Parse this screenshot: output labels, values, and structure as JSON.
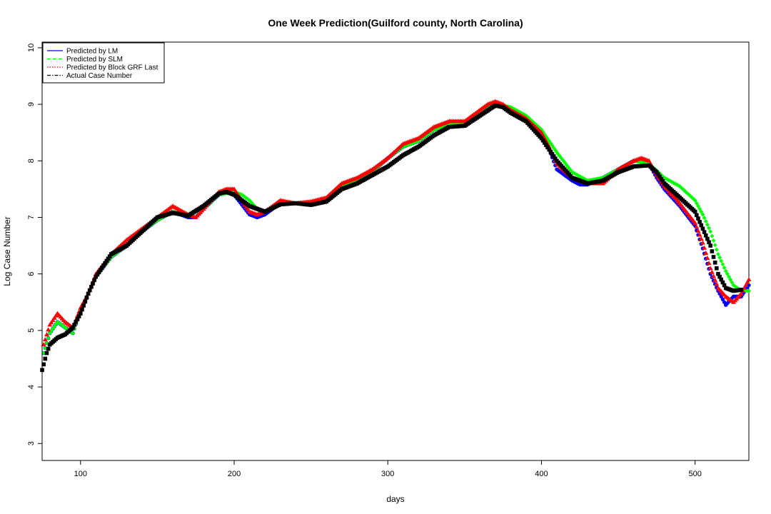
{
  "chart_data": {
    "type": "scatter",
    "title": "One Week Prediction(Guilford county, North Carolina)",
    "xlabel": "days",
    "ylabel": "Log Case Number",
    "xlim": [
      75,
      535
    ],
    "ylim": [
      2.7,
      10.1
    ],
    "xticks": [
      100,
      200,
      300,
      400,
      500
    ],
    "yticks": [
      3,
      4,
      5,
      6,
      7,
      8,
      9,
      10
    ],
    "grid": false,
    "legend_position": "top-left",
    "series": [
      {
        "name": "Predicted by LM",
        "color": "#0000ff",
        "marker": "circle",
        "line_style": "solid",
        "x": [
          76,
          80,
          85,
          90,
          95,
          100,
          105,
          110,
          120,
          130,
          140,
          150,
          160,
          170,
          175,
          180,
          190,
          195,
          200,
          210,
          215,
          220,
          230,
          240,
          250,
          260,
          270,
          280,
          290,
          300,
          310,
          320,
          330,
          340,
          350,
          360,
          365,
          370,
          375,
          380,
          390,
          400,
          405,
          410,
          415,
          420,
          425,
          430,
          440,
          450,
          460,
          465,
          470,
          475,
          480,
          490,
          500,
          505,
          510,
          515,
          520,
          525,
          530,
          535
        ],
        "y": [
          4.6,
          4.95,
          5.15,
          5.05,
          4.95,
          5.35,
          5.65,
          5.95,
          6.3,
          6.5,
          6.75,
          6.95,
          7.1,
          7.0,
          7.0,
          7.15,
          7.4,
          7.45,
          7.4,
          7.05,
          7.0,
          7.05,
          7.25,
          7.25,
          7.22,
          7.3,
          7.55,
          7.65,
          7.8,
          8.05,
          8.25,
          8.35,
          8.55,
          8.65,
          8.65,
          8.85,
          8.95,
          9.0,
          8.95,
          8.85,
          8.7,
          8.45,
          8.2,
          7.85,
          7.75,
          7.65,
          7.58,
          7.58,
          7.7,
          7.85,
          8.0,
          8.0,
          7.95,
          7.7,
          7.5,
          7.2,
          6.85,
          6.45,
          6.0,
          5.7,
          5.45,
          5.6,
          5.6,
          5.8
        ]
      },
      {
        "name": "Predicted by SLM",
        "color": "#00ff00",
        "marker": "diamond",
        "line_style": "dashed",
        "x": [
          76,
          80,
          85,
          90,
          95,
          100,
          105,
          110,
          120,
          130,
          140,
          150,
          160,
          170,
          180,
          190,
          200,
          205,
          210,
          215,
          220,
          230,
          240,
          250,
          260,
          270,
          280,
          290,
          300,
          310,
          320,
          330,
          340,
          350,
          360,
          370,
          380,
          390,
          400,
          410,
          420,
          430,
          440,
          450,
          460,
          470,
          480,
          490,
          500,
          505,
          510,
          515,
          520,
          525,
          530,
          535
        ],
        "y": [
          4.6,
          4.95,
          5.15,
          5.05,
          4.95,
          5.35,
          5.65,
          5.95,
          6.3,
          6.5,
          6.75,
          6.95,
          7.1,
          7.05,
          7.15,
          7.4,
          7.45,
          7.4,
          7.3,
          7.15,
          7.1,
          7.25,
          7.25,
          7.22,
          7.3,
          7.55,
          7.65,
          7.8,
          8.05,
          8.25,
          8.35,
          8.55,
          8.65,
          8.65,
          8.85,
          9.0,
          8.95,
          8.8,
          8.55,
          8.15,
          7.8,
          7.65,
          7.7,
          7.85,
          8.0,
          7.95,
          7.7,
          7.55,
          7.3,
          7.05,
          6.75,
          6.35,
          6.05,
          5.8,
          5.7,
          5.7
        ]
      },
      {
        "name": "Predicted by Block GRF Last",
        "color": "#ff0000",
        "marker": "triangle",
        "line_style": "dotted",
        "x": [
          76,
          80,
          85,
          90,
          95,
          100,
          105,
          110,
          120,
          130,
          140,
          150,
          160,
          170,
          175,
          180,
          190,
          195,
          200,
          210,
          215,
          220,
          230,
          240,
          250,
          260,
          270,
          280,
          290,
          300,
          310,
          320,
          330,
          340,
          350,
          360,
          365,
          370,
          375,
          380,
          390,
          400,
          405,
          410,
          420,
          430,
          440,
          450,
          460,
          465,
          470,
          475,
          480,
          490,
          500,
          505,
          510,
          515,
          520,
          525,
          530,
          535
        ],
        "y": [
          4.75,
          5.1,
          5.3,
          5.15,
          5.05,
          5.4,
          5.65,
          6.0,
          6.35,
          6.6,
          6.8,
          7.0,
          7.2,
          7.05,
          7.0,
          7.15,
          7.45,
          7.5,
          7.5,
          7.1,
          7.05,
          7.1,
          7.3,
          7.25,
          7.28,
          7.35,
          7.6,
          7.7,
          7.85,
          8.05,
          8.3,
          8.4,
          8.6,
          8.7,
          8.7,
          8.9,
          9.0,
          9.05,
          9.0,
          8.9,
          8.75,
          8.5,
          8.25,
          7.95,
          7.7,
          7.6,
          7.6,
          7.85,
          8.0,
          8.05,
          8.0,
          7.75,
          7.55,
          7.25,
          6.9,
          6.55,
          6.1,
          5.75,
          5.6,
          5.5,
          5.65,
          5.9
        ]
      },
      {
        "name": "Actual Case Number",
        "color": "#000000",
        "marker": "square",
        "line_style": "dashdot",
        "x": [
          75,
          78,
          80,
          85,
          90,
          95,
          100,
          105,
          110,
          120,
          130,
          140,
          150,
          160,
          170,
          180,
          190,
          195,
          200,
          210,
          220,
          230,
          240,
          250,
          260,
          270,
          280,
          290,
          300,
          310,
          320,
          330,
          340,
          350,
          360,
          370,
          375,
          380,
          390,
          400,
          410,
          420,
          430,
          440,
          450,
          460,
          470,
          475,
          480,
          490,
          500,
          510,
          515,
          520,
          525,
          530
        ],
        "y": [
          4.3,
          4.6,
          4.75,
          4.87,
          4.93,
          5.05,
          5.3,
          5.65,
          5.95,
          6.35,
          6.5,
          6.75,
          7.0,
          7.08,
          7.03,
          7.2,
          7.42,
          7.45,
          7.4,
          7.2,
          7.1,
          7.23,
          7.25,
          7.22,
          7.28,
          7.5,
          7.6,
          7.75,
          7.9,
          8.1,
          8.25,
          8.45,
          8.6,
          8.62,
          8.8,
          8.98,
          8.95,
          8.85,
          8.7,
          8.4,
          8.0,
          7.7,
          7.6,
          7.65,
          7.8,
          7.9,
          7.92,
          7.8,
          7.6,
          7.35,
          7.1,
          6.5,
          6.0,
          5.75,
          5.7,
          5.72
        ]
      }
    ]
  }
}
